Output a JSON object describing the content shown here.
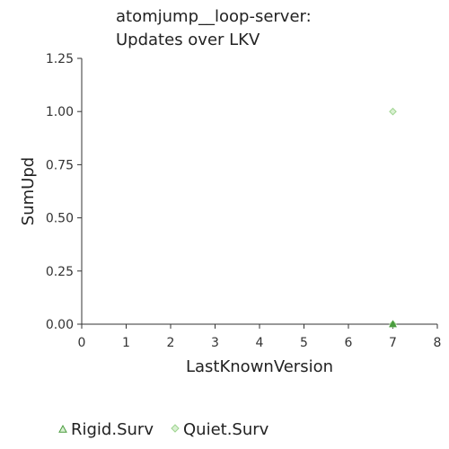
{
  "chart_data": {
    "type": "scatter",
    "title_lines": [
      "atomjump__loop-server:",
      "Updates over LKV"
    ],
    "xlabel": "LastKnownVersion",
    "ylabel": "SumUpd",
    "xlim": [
      0,
      8
    ],
    "ylim": [
      0,
      1.25
    ],
    "x_ticks": [
      0,
      1,
      2,
      3,
      4,
      5,
      6,
      7,
      8
    ],
    "y_ticks": [
      0,
      0.25,
      0.5,
      0.75,
      1.0,
      1.25
    ],
    "y_tick_labels": [
      "0.00",
      "0.25",
      "0.50",
      "0.75",
      "1.00",
      "1.25"
    ],
    "grid": false,
    "legend_position": "bottom",
    "series": [
      {
        "name": "Rigid.Surv",
        "marker": "triangle",
        "color": "#4a9c3f",
        "points": [
          {
            "x": 7,
            "y": 0
          }
        ]
      },
      {
        "name": "Quiet.Surv",
        "marker": "diamond",
        "color": "#9ed48f",
        "points": [
          {
            "x": 7,
            "y": 1.0
          },
          {
            "x": 7,
            "y": 0
          }
        ]
      }
    ]
  }
}
